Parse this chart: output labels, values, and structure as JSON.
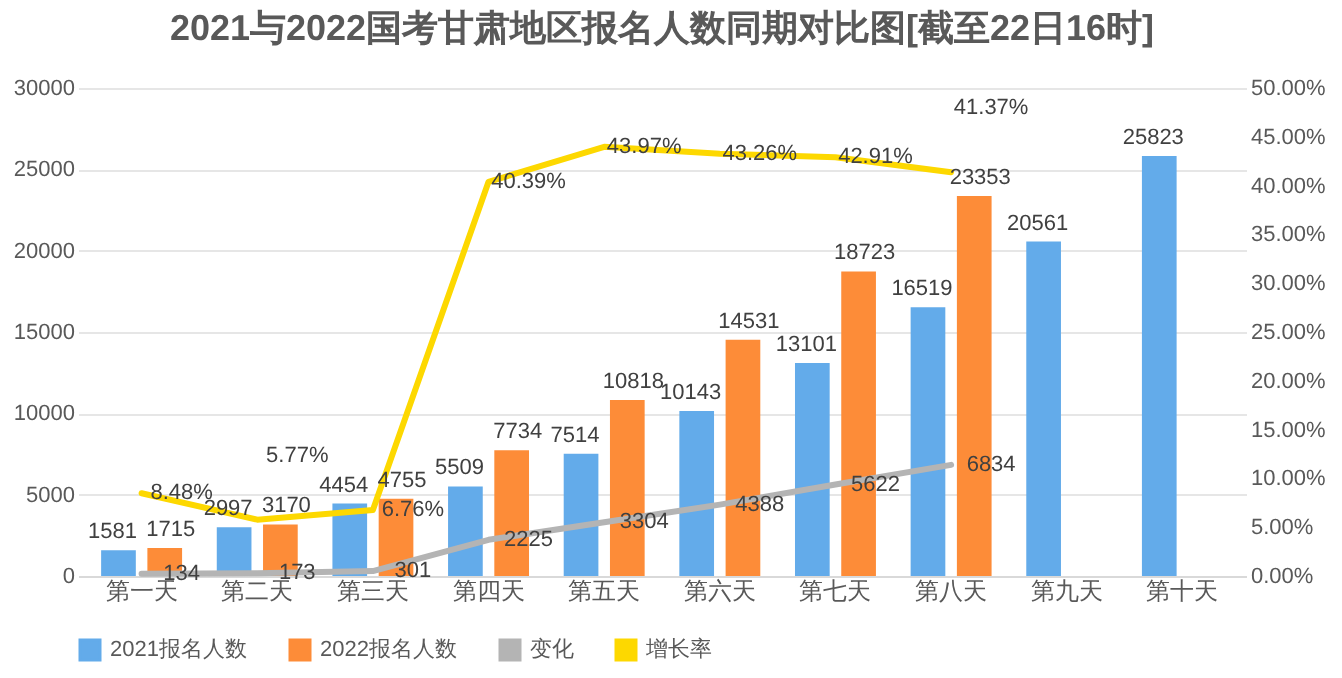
{
  "chart_data": {
    "type": "bar",
    "title": "2021与2022国考甘肃地区报名人数同期对比图[截至22日16时]",
    "categories": [
      "第一天",
      "第二天",
      "第三天",
      "第四天",
      "第五天",
      "第六天",
      "第七天",
      "第八天",
      "第九天",
      "第十天"
    ],
    "series": [
      {
        "name": "2021报名人数",
        "color": "#63abea",
        "values": [
          1581,
          2997,
          4454,
          5509,
          7514,
          10143,
          13101,
          16519,
          20561,
          25823
        ]
      },
      {
        "name": "2022报名人数",
        "color": "#fd8c38",
        "values": [
          1715,
          3170,
          4755,
          7734,
          10818,
          14531,
          18723,
          23353,
          null,
          null
        ]
      },
      {
        "name": "变化",
        "type": "line",
        "color": "#b4b4b4",
        "values": [
          134,
          173,
          301,
          2225,
          3304,
          4388,
          5622,
          6834,
          null,
          null
        ]
      },
      {
        "name": "增长率",
        "type": "line",
        "axis": "y2",
        "color": "#fdd800",
        "values": [
          8.48,
          5.77,
          6.76,
          40.39,
          43.97,
          43.26,
          42.91,
          41.37,
          null,
          null
        ],
        "value_labels": [
          "8.48%",
          "5.77%",
          "6.76%",
          "40.39%",
          "43.97%",
          "43.26%",
          "42.91%",
          "41.37%",
          null,
          null
        ]
      }
    ],
    "ylim": [
      0,
      30000
    ],
    "yticks": [
      0,
      5000,
      10000,
      15000,
      20000,
      25000,
      30000
    ],
    "y2lim": [
      0,
      50
    ],
    "y2ticks": [
      {
        "value": 0,
        "label": "0.00%"
      },
      {
        "value": 5,
        "label": "5.00%"
      },
      {
        "value": 10,
        "label": "10.00%"
      },
      {
        "value": 15,
        "label": "15.00%"
      },
      {
        "value": 20,
        "label": "20.00%"
      },
      {
        "value": 25,
        "label": "25.00%"
      },
      {
        "value": 30,
        "label": "30.00%"
      },
      {
        "value": 35,
        "label": "35.00%"
      },
      {
        "value": 40,
        "label": "40.00%"
      },
      {
        "value": 45,
        "label": "45.00%"
      },
      {
        "value": 50,
        "label": "50.00%"
      }
    ],
    "grid": "y",
    "legend": "bottom",
    "data_labels": true
  }
}
